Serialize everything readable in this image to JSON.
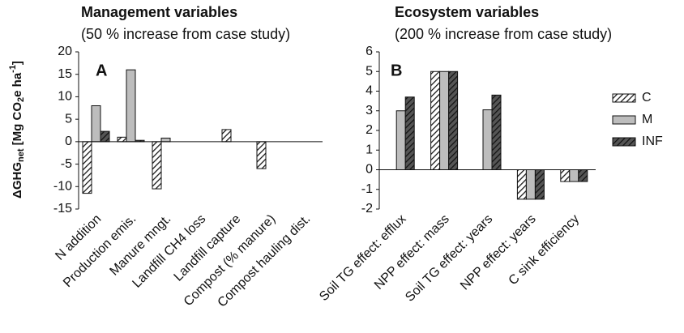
{
  "chart_data": [
    {
      "type": "bar",
      "title": "Management variables",
      "subtitle": "(50 % increase from case study)",
      "panel": "A",
      "ylabel": [
        "ΔGHG",
        "net",
        " [Mg CO",
        "2",
        "e ha",
        "-1",
        "]"
      ],
      "categories": [
        "N addition",
        "Production emis.",
        "Manure mngt.",
        "Landfill CH4 loss",
        "Landfill capture",
        "Compost (% manure)",
        "Compost hauling dist."
      ],
      "series": [
        {
          "name": "C",
          "color": "#ffffff",
          "hatch": true,
          "values": [
            -11.5,
            1,
            -10.5,
            0,
            2.7,
            -6,
            0
          ]
        },
        {
          "name": "M",
          "color": "#bdbdbd",
          "hatch": false,
          "values": [
            8,
            16,
            0.8,
            0,
            0,
            0,
            0
          ]
        },
        {
          "name": "INF",
          "color": "#555555",
          "hatch": true,
          "values": [
            2.3,
            0.3,
            0,
            0,
            0,
            0,
            0
          ]
        }
      ],
      "ylim": [
        -15,
        20
      ],
      "yticks": [
        -15,
        -10,
        -5,
        0,
        5,
        10,
        15,
        20
      ]
    },
    {
      "type": "bar",
      "title": "Ecosystem variables",
      "subtitle": "(200 % increase from case study)",
      "panel": "B",
      "categories": [
        "Soil TG effect: efflux",
        "NPP effect: mass",
        "Soil TG effect: years",
        "NPP effect: years",
        "C sink efficiency"
      ],
      "series": [
        {
          "name": "C",
          "color": "#ffffff",
          "hatch": true,
          "values": [
            0,
            5,
            0,
            -1.5,
            -0.6
          ]
        },
        {
          "name": "M",
          "color": "#bdbdbd",
          "hatch": false,
          "values": [
            3,
            5,
            3.05,
            -1.5,
            -0.6
          ]
        },
        {
          "name": "INF",
          "color": "#555555",
          "hatch": true,
          "values": [
            3.7,
            5,
            3.8,
            -1.5,
            -0.6
          ]
        }
      ],
      "ylim": [
        -2,
        6
      ],
      "yticks": [
        -2,
        -1,
        0,
        1,
        2,
        3,
        4,
        5,
        6
      ],
      "legend": "right"
    }
  ]
}
